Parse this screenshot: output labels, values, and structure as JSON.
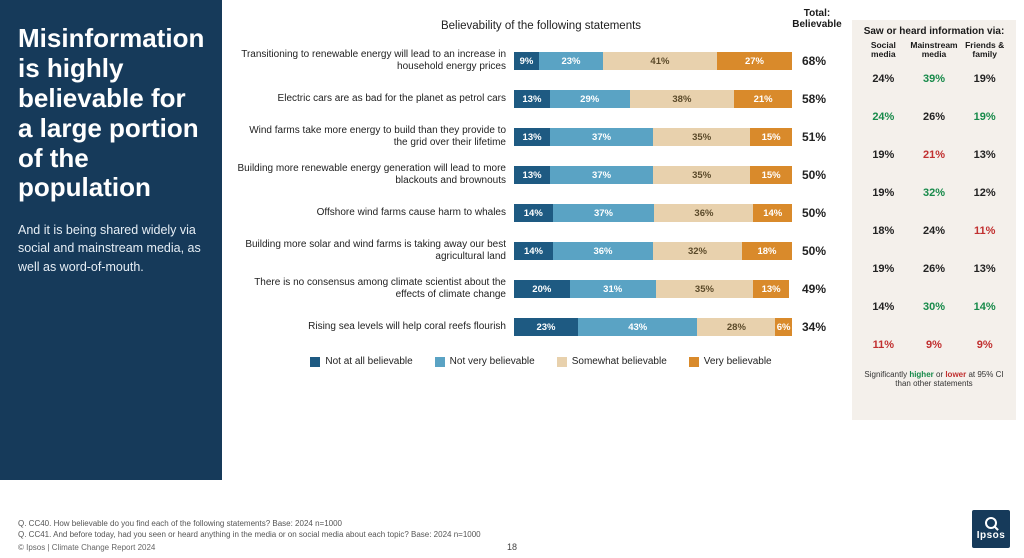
{
  "sidebar": {
    "headline": "Misinformation is highly believable for a large portion of the population",
    "subtext": "And it is being shared widely via social and mainstream media, as well as word-of-mouth."
  },
  "chart": {
    "title": "Believability of the following statements",
    "total_label": "Total: Believable",
    "legend": [
      "Not at all believable",
      "Not very believable",
      "Somewhat believable",
      "Very believable"
    ],
    "seg_colors": [
      "#1e5a82",
      "#5aa3c4",
      "#e8d1ad",
      "#d98a2b"
    ],
    "rows": [
      {
        "label": "Transitioning to renewable energy will lead to an increase in household energy prices",
        "segs": [
          9,
          23,
          41,
          27
        ],
        "total": "68%"
      },
      {
        "label": "Electric cars are as bad for the planet as petrol cars",
        "segs": [
          13,
          29,
          38,
          21
        ],
        "total": "58%"
      },
      {
        "label": "Wind farms take more energy to build than they provide to the grid over their lifetime",
        "segs": [
          13,
          37,
          35,
          15
        ],
        "total": "51%"
      },
      {
        "label": "Building more renewable energy generation will lead to more blackouts and brownouts",
        "segs": [
          13,
          37,
          35,
          15
        ],
        "total": "50%"
      },
      {
        "label": "Offshore wind farms cause harm to whales",
        "segs": [
          14,
          37,
          36,
          14
        ],
        "total": "50%"
      },
      {
        "label": "Building more solar and wind farms is taking away our best agricultural land",
        "segs": [
          14,
          36,
          32,
          18
        ],
        "total": "50%"
      },
      {
        "label": "There is no consensus among climate scientist about the effects of climate change",
        "segs": [
          20,
          31,
          35,
          13
        ],
        "total": "49%"
      },
      {
        "label": "Rising sea levels will help coral reefs flourish",
        "segs": [
          23,
          43,
          28,
          6
        ],
        "total": "34%"
      }
    ]
  },
  "right": {
    "header": "Saw or heard information via:",
    "cols": [
      "Social media",
      "Mainstream media",
      "Friends & family"
    ],
    "rows": [
      [
        {
          "v": "24%",
          "c": "n"
        },
        {
          "v": "39%",
          "c": "hi"
        },
        {
          "v": "19%",
          "c": "n"
        }
      ],
      [
        {
          "v": "24%",
          "c": "hi"
        },
        {
          "v": "26%",
          "c": "n"
        },
        {
          "v": "19%",
          "c": "hi"
        }
      ],
      [
        {
          "v": "19%",
          "c": "n"
        },
        {
          "v": "21%",
          "c": "lo"
        },
        {
          "v": "13%",
          "c": "n"
        }
      ],
      [
        {
          "v": "19%",
          "c": "n"
        },
        {
          "v": "32%",
          "c": "hi"
        },
        {
          "v": "12%",
          "c": "n"
        }
      ],
      [
        {
          "v": "18%",
          "c": "n"
        },
        {
          "v": "24%",
          "c": "n"
        },
        {
          "v": "11%",
          "c": "lo"
        }
      ],
      [
        {
          "v": "19%",
          "c": "n"
        },
        {
          "v": "26%",
          "c": "n"
        },
        {
          "v": "13%",
          "c": "n"
        }
      ],
      [
        {
          "v": "14%",
          "c": "n"
        },
        {
          "v": "30%",
          "c": "hi"
        },
        {
          "v": "14%",
          "c": "hi"
        }
      ],
      [
        {
          "v": "11%",
          "c": "lo"
        },
        {
          "v": "9%",
          "c": "lo"
        },
        {
          "v": "9%",
          "c": "lo"
        }
      ]
    ],
    "note_pre": "Significantly ",
    "note_hi": "higher",
    "note_mid": " or ",
    "note_lo": "lower",
    "note_post": " at 95% CI than other statements"
  },
  "footer": {
    "q1": "Q. CC40. How believable do you find each of the following statements? Base: 2024 n=1000",
    "q2": "Q. CC41. And before today, had you seen or heard anything in the media or on social media about each topic? Base: 2024 n=1000",
    "copyright": "© Ipsos | Climate Change Report 2024",
    "page": "18",
    "logo": "Ipsos"
  },
  "colors": {
    "hi": "#178a4a",
    "lo": "#c13030",
    "n": "#222222"
  }
}
